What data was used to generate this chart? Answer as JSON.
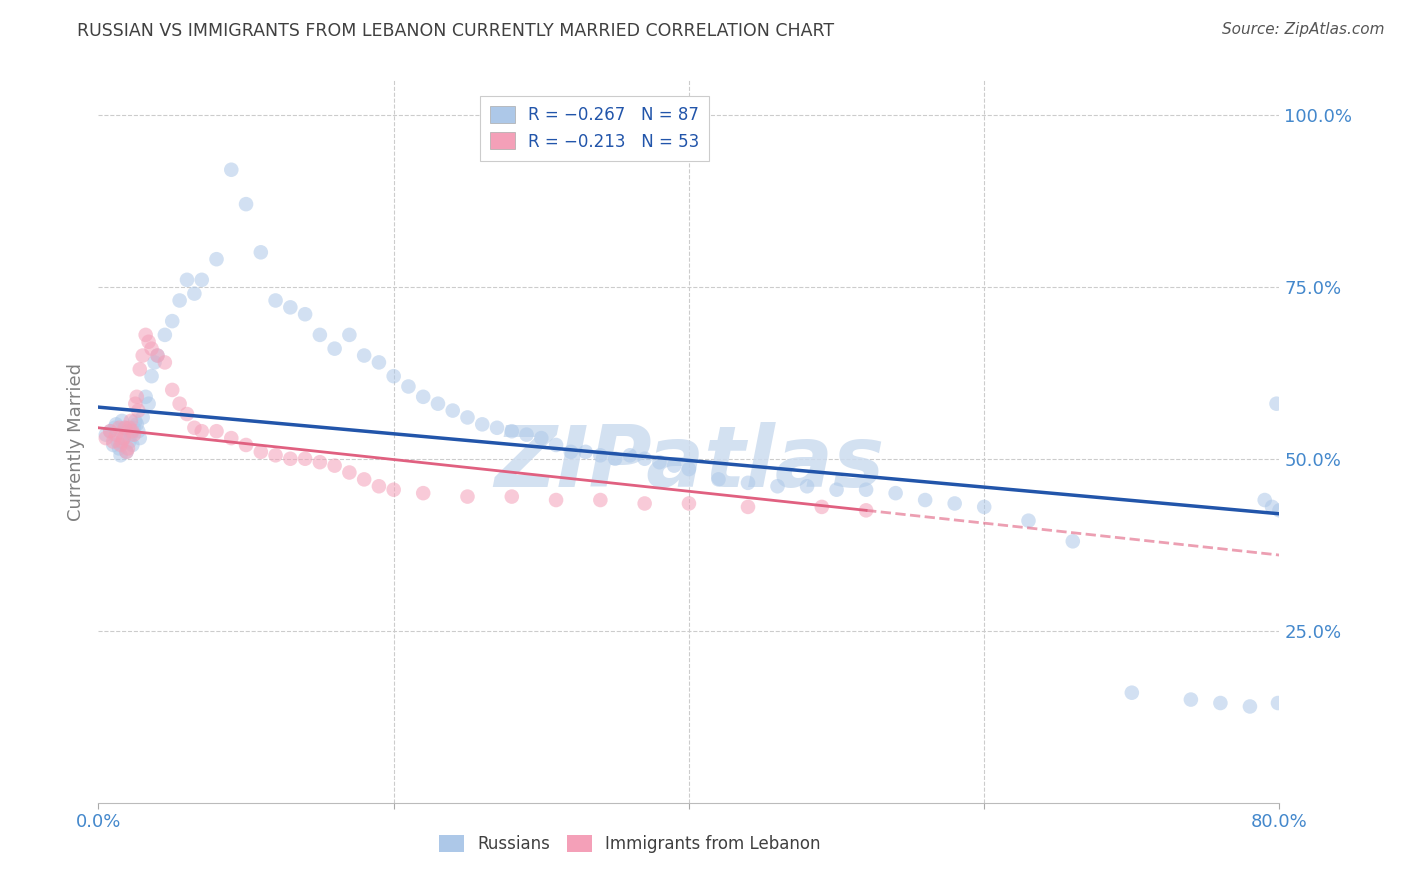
{
  "title": "RUSSIAN VS IMMIGRANTS FROM LEBANON CURRENTLY MARRIED CORRELATION CHART",
  "source": "Source: ZipAtlas.com",
  "ylabel": "Currently Married",
  "xlabel": "",
  "xlim": [
    0.0,
    0.8
  ],
  "ylim": [
    0.0,
    1.05
  ],
  "xticks": [
    0.0,
    0.2,
    0.4,
    0.6,
    0.8
  ],
  "xticklabels": [
    "0.0%",
    "",
    "",
    "",
    "80.0%"
  ],
  "yticks_right": [
    0.25,
    0.5,
    0.75,
    1.0
  ],
  "ytick_labels_right": [
    "25.0%",
    "50.0%",
    "75.0%",
    "100.0%"
  ],
  "russian_color": "#adc8e8",
  "lebanon_color": "#f4a0b8",
  "trend_russian_color": "#2255aa",
  "trend_lebanon_color": "#e06080",
  "background_color": "#ffffff",
  "grid_color": "#cccccc",
  "title_color": "#404040",
  "axis_label_color": "#808080",
  "tick_color": "#4488cc",
  "watermark": "ZIPatlas",
  "watermark_color": "#ccdcef",
  "marker_size": 110,
  "marker_alpha": 0.55,
  "russians_x": [
    0.005,
    0.008,
    0.01,
    0.011,
    0.012,
    0.013,
    0.014,
    0.015,
    0.016,
    0.017,
    0.018,
    0.019,
    0.02,
    0.021,
    0.022,
    0.023,
    0.024,
    0.025,
    0.026,
    0.027,
    0.028,
    0.03,
    0.032,
    0.034,
    0.036,
    0.038,
    0.04,
    0.045,
    0.05,
    0.055,
    0.06,
    0.065,
    0.07,
    0.08,
    0.09,
    0.1,
    0.11,
    0.12,
    0.13,
    0.14,
    0.15,
    0.16,
    0.17,
    0.18,
    0.19,
    0.2,
    0.21,
    0.22,
    0.23,
    0.24,
    0.25,
    0.26,
    0.27,
    0.28,
    0.29,
    0.3,
    0.31,
    0.32,
    0.33,
    0.34,
    0.35,
    0.36,
    0.37,
    0.38,
    0.39,
    0.4,
    0.42,
    0.44,
    0.46,
    0.48,
    0.5,
    0.52,
    0.54,
    0.56,
    0.58,
    0.6,
    0.63,
    0.66,
    0.7,
    0.74,
    0.76,
    0.78,
    0.79,
    0.795,
    0.798,
    0.799,
    0.8
  ],
  "russians_y": [
    0.535,
    0.54,
    0.52,
    0.545,
    0.55,
    0.525,
    0.515,
    0.505,
    0.555,
    0.53,
    0.545,
    0.51,
    0.54,
    0.525,
    0.535,
    0.52,
    0.545,
    0.555,
    0.55,
    0.54,
    0.53,
    0.56,
    0.59,
    0.58,
    0.62,
    0.64,
    0.65,
    0.68,
    0.7,
    0.73,
    0.76,
    0.74,
    0.76,
    0.79,
    0.92,
    0.87,
    0.8,
    0.73,
    0.72,
    0.71,
    0.68,
    0.66,
    0.68,
    0.65,
    0.64,
    0.62,
    0.605,
    0.59,
    0.58,
    0.57,
    0.56,
    0.55,
    0.545,
    0.54,
    0.535,
    0.53,
    0.52,
    0.51,
    0.51,
    0.505,
    0.5,
    0.505,
    0.5,
    0.495,
    0.49,
    0.485,
    0.47,
    0.465,
    0.46,
    0.46,
    0.455,
    0.455,
    0.45,
    0.44,
    0.435,
    0.43,
    0.41,
    0.38,
    0.16,
    0.15,
    0.145,
    0.14,
    0.44,
    0.43,
    0.58,
    0.145,
    0.425
  ],
  "lebanon_x": [
    0.005,
    0.008,
    0.01,
    0.012,
    0.014,
    0.015,
    0.016,
    0.017,
    0.018,
    0.019,
    0.02,
    0.021,
    0.022,
    0.023,
    0.024,
    0.025,
    0.026,
    0.027,
    0.028,
    0.03,
    0.032,
    0.034,
    0.036,
    0.04,
    0.045,
    0.05,
    0.055,
    0.06,
    0.065,
    0.07,
    0.08,
    0.09,
    0.1,
    0.11,
    0.12,
    0.13,
    0.14,
    0.15,
    0.16,
    0.17,
    0.18,
    0.19,
    0.2,
    0.22,
    0.25,
    0.28,
    0.31,
    0.34,
    0.37,
    0.4,
    0.44,
    0.49,
    0.52
  ],
  "lebanon_y": [
    0.53,
    0.54,
    0.525,
    0.535,
    0.545,
    0.52,
    0.525,
    0.53,
    0.545,
    0.51,
    0.515,
    0.545,
    0.555,
    0.54,
    0.535,
    0.58,
    0.59,
    0.57,
    0.63,
    0.65,
    0.68,
    0.67,
    0.66,
    0.65,
    0.64,
    0.6,
    0.58,
    0.565,
    0.545,
    0.54,
    0.54,
    0.53,
    0.52,
    0.51,
    0.505,
    0.5,
    0.5,
    0.495,
    0.49,
    0.48,
    0.47,
    0.46,
    0.455,
    0.45,
    0.445,
    0.445,
    0.44,
    0.44,
    0.435,
    0.435,
    0.43,
    0.43,
    0.425
  ],
  "trend_rus_x0": 0.0,
  "trend_rus_x1": 0.8,
  "trend_rus_y0": 0.575,
  "trend_rus_y1": 0.42,
  "trend_leb_x0": 0.0,
  "trend_leb_x1": 0.52,
  "trend_leb_y0": 0.545,
  "trend_leb_y1": 0.425,
  "trend_leb_ext_x0": 0.52,
  "trend_leb_ext_x1": 0.8,
  "trend_leb_ext_y0": 0.425,
  "trend_leb_ext_y1": 0.36
}
